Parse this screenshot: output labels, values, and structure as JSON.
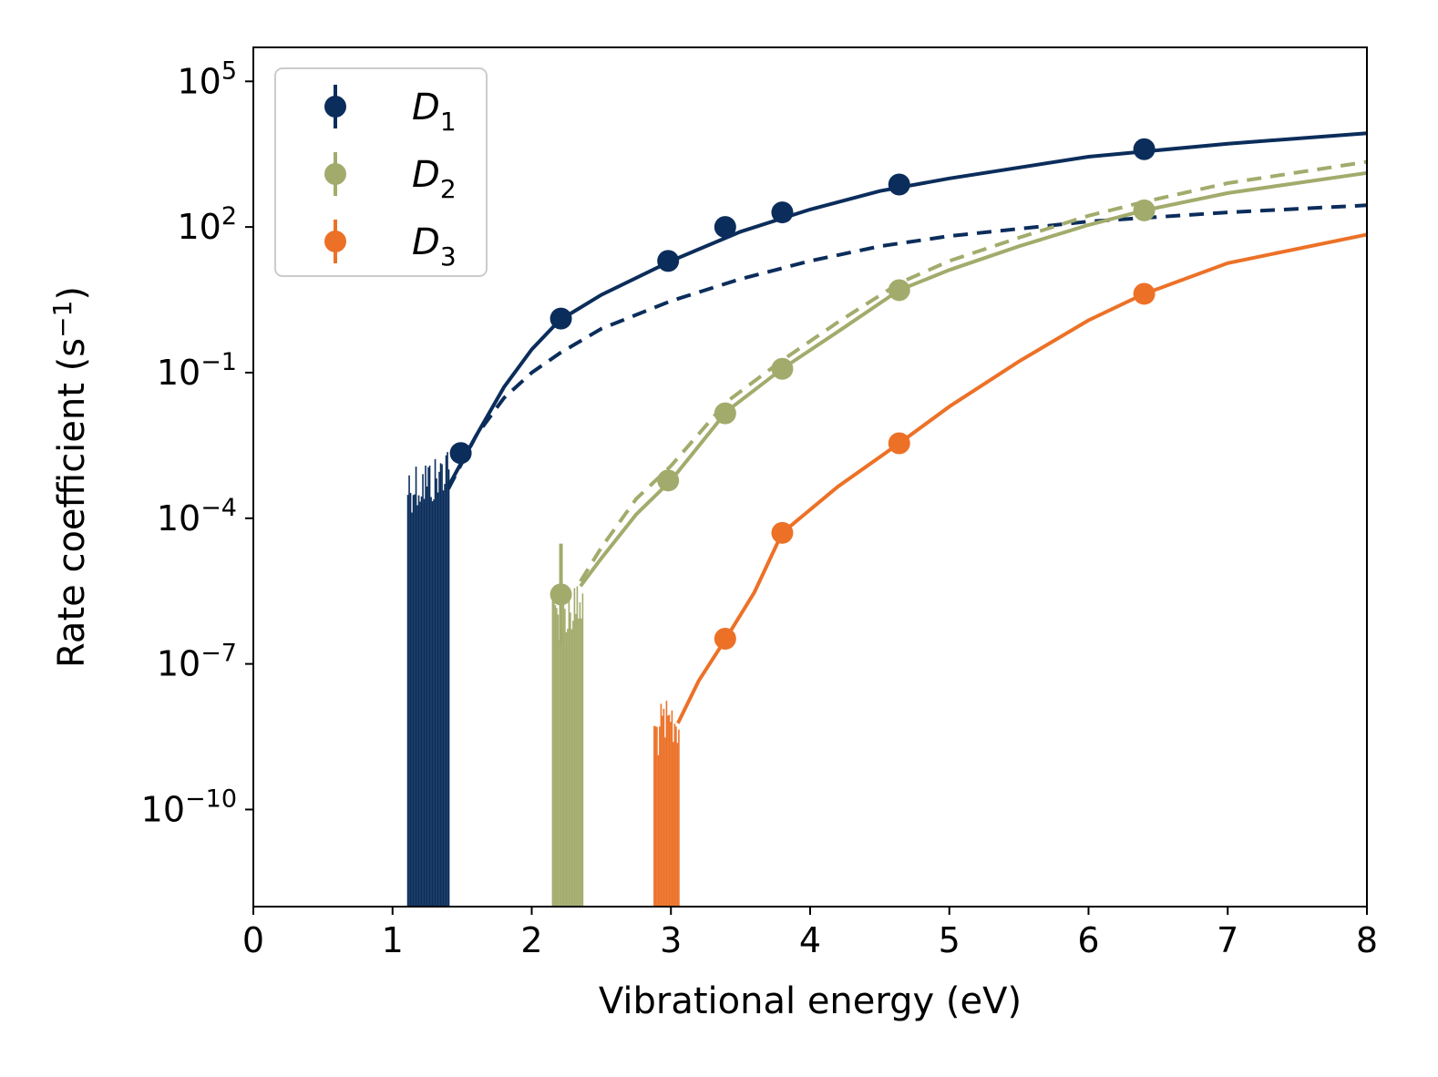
{
  "chart_data": {
    "type": "scatter",
    "title": "",
    "xlabel": "Vibrational energy (eV)",
    "ylabel": "Rate coefficient (s",
    "ylabel_sup": "−1",
    "ylabel_close": ")",
    "xlim": [
      0,
      8
    ],
    "ylim_log10": [
      -12,
      5.7
    ],
    "y_scale": "log",
    "x_ticks": [
      0,
      1,
      2,
      3,
      4,
      5,
      6,
      7,
      8
    ],
    "y_ticks": [
      {
        "exp": 5,
        "base": "10",
        "sup": "5"
      },
      {
        "exp": 2,
        "base": "10",
        "sup": "2"
      },
      {
        "exp": -1,
        "base": "10",
        "sup": "−1"
      },
      {
        "exp": -4,
        "base": "10",
        "sup": "−4"
      },
      {
        "exp": -7,
        "base": "10",
        "sup": "−7"
      },
      {
        "exp": -10,
        "base": "10",
        "sup": "−10"
      }
    ],
    "legend_position": "top-left",
    "series": [
      {
        "name": "D",
        "sub": "1",
        "color": "#0b2d5b",
        "points": [
          {
            "x": 1.49,
            "y": 0.0022
          },
          {
            "x": 2.21,
            "y": 1.3
          },
          {
            "x": 2.98,
            "y": 20
          },
          {
            "x": 3.39,
            "y": 100
          },
          {
            "x": 3.8,
            "y": 200
          },
          {
            "x": 4.64,
            "y": 750
          },
          {
            "x": 6.4,
            "y": 4000
          }
        ],
        "fit_solid": [
          [
            1.4,
            0.00045
          ],
          [
            1.6,
            0.005
          ],
          [
            1.8,
            0.05
          ],
          [
            2.0,
            0.3
          ],
          [
            2.2,
            1.2
          ],
          [
            2.5,
            4
          ],
          [
            3.0,
            20
          ],
          [
            3.5,
            80
          ],
          [
            4.0,
            230
          ],
          [
            4.5,
            550
          ],
          [
            5.0,
            1000
          ],
          [
            6.0,
            2800
          ],
          [
            7.0,
            5200
          ],
          [
            8.0,
            8500
          ]
        ],
        "fit_dashed": [
          [
            1.4,
            0.0004
          ],
          [
            1.6,
            0.005
          ],
          [
            1.8,
            0.03
          ],
          [
            2.0,
            0.1
          ],
          [
            2.2,
            0.25
          ],
          [
            2.5,
            0.8
          ],
          [
            3.0,
            3
          ],
          [
            3.5,
            8.5
          ],
          [
            4.0,
            20
          ],
          [
            4.5,
            40
          ],
          [
            5.0,
            65
          ],
          [
            6.0,
            130
          ],
          [
            7.0,
            200
          ],
          [
            8.0,
            280
          ]
        ],
        "noise_band": {
          "x_start": 1.11,
          "x_end": 1.41,
          "y_max": 0.0007
        }
      },
      {
        "name": "D",
        "sub": "2",
        "color": "#a3ab6c",
        "points": [
          {
            "x": 2.21,
            "y": 2.7e-06,
            "err_low": 2.5e-07,
            "err_high": 3e-05
          },
          {
            "x": 2.98,
            "y": 0.0006
          },
          {
            "x": 3.39,
            "y": 0.0145
          },
          {
            "x": 3.8,
            "y": 0.12
          },
          {
            "x": 4.64,
            "y": 5
          },
          {
            "x": 6.4,
            "y": 220
          }
        ],
        "fit_solid": [
          [
            2.35,
            4e-06
          ],
          [
            2.5,
            1.5e-05
          ],
          [
            2.75,
            0.00012
          ],
          [
            3.0,
            0.0006
          ],
          [
            3.4,
            0.016
          ],
          [
            3.8,
            0.12
          ],
          [
            4.2,
            0.7
          ],
          [
            4.64,
            5
          ],
          [
            5.0,
            13
          ],
          [
            5.5,
            40
          ],
          [
            6.0,
            110
          ],
          [
            6.4,
            220
          ],
          [
            7.0,
            500
          ],
          [
            8.0,
            1300
          ]
        ],
        "fit_dashed": [
          [
            2.35,
            5e-06
          ],
          [
            2.5,
            2.5e-05
          ],
          [
            2.75,
            0.00025
          ],
          [
            3.0,
            0.0012
          ],
          [
            3.4,
            0.025
          ],
          [
            3.8,
            0.18
          ],
          [
            4.2,
            1.1
          ],
          [
            4.64,
            7
          ],
          [
            5.0,
            20
          ],
          [
            5.5,
            60
          ],
          [
            6.0,
            170
          ],
          [
            6.4,
            330
          ],
          [
            7.0,
            800
          ],
          [
            8.0,
            2200
          ]
        ],
        "noise_band": {
          "x_start": 2.15,
          "x_end": 2.37,
          "y_max": 1.5e-06
        }
      },
      {
        "name": "D",
        "sub": "3",
        "color": "#ec7127",
        "points": [
          {
            "x": 3.39,
            "y": 3.3e-07
          },
          {
            "x": 3.8,
            "y": 5e-05
          },
          {
            "x": 4.64,
            "y": 0.0035
          },
          {
            "x": 6.4,
            "y": 4.2
          }
        ],
        "fit_solid": [
          [
            3.05,
            6e-09
          ],
          [
            3.2,
            4.5e-08
          ],
          [
            3.4,
            3.5e-07
          ],
          [
            3.6,
            3e-06
          ],
          [
            3.8,
            5e-05
          ],
          [
            4.2,
            0.00045
          ],
          [
            4.64,
            0.0035
          ],
          [
            5.0,
            0.02
          ],
          [
            5.5,
            0.17
          ],
          [
            6.0,
            1.2
          ],
          [
            6.4,
            4.2
          ],
          [
            7.0,
            18
          ],
          [
            8.0,
            70
          ]
        ],
        "noise_band": {
          "x_start": 2.88,
          "x_end": 3.06,
          "y_max": 6e-09
        }
      }
    ]
  }
}
